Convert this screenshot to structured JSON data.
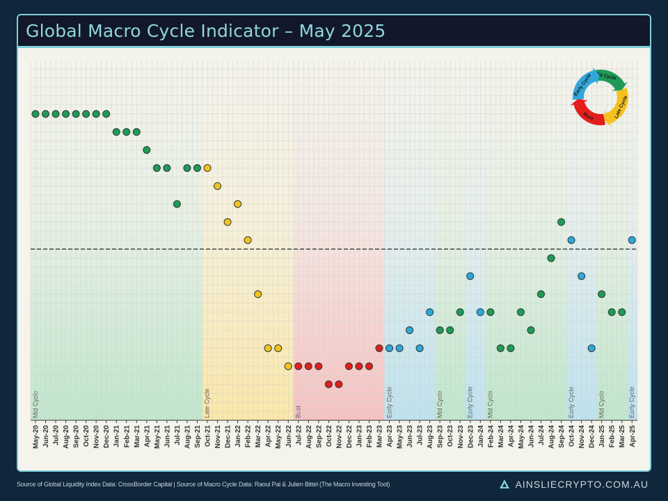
{
  "header": {
    "title": "Global Macro Cycle Indicator – May 2025"
  },
  "footer": {
    "source": "Source of Global Liquidity Index Data: CrossBorder Capital | Source of Macro Cycle Data: Raoul Pal & Julien Bittel (The Macro Investing Tool)",
    "brand": "AINSLIECRYPTO.COM.AU",
    "brand_icon": "ainslie-a-logo-icon"
  },
  "legend_wheel": {
    "labels": [
      "Mid Cycle",
      "Late Cycle",
      "Bust",
      "Early Cycle"
    ]
  },
  "colors": {
    "mid": "#1f9a57",
    "late": "#f4c21f",
    "bust": "#e41d1d",
    "early": "#2fa7dd",
    "mid_band": "#bfe6cc",
    "late_band": "#fbe7a8",
    "bust_band": "#f6c2c2",
    "early_band": "#bde2ef"
  },
  "chart_data": {
    "type": "scatter",
    "title": "Global Macro Cycle Indicator – May 2025",
    "categories": [
      "May-20",
      "Jun-20",
      "Jul-20",
      "Aug-20",
      "Sep-20",
      "Oct-20",
      "Nov-20",
      "Dec-20",
      "Jan-21",
      "Feb-21",
      "Mar-21",
      "Apr-21",
      "May-21",
      "Jun-21",
      "Jul-21",
      "Aug-21",
      "Sep-21",
      "Oct-21",
      "Nov-21",
      "Dec-21",
      "Jan-22",
      "Feb-22",
      "Mar-22",
      "Apr-22",
      "May-22",
      "Jun-22",
      "Jul-22",
      "Aug-22",
      "Sep-22",
      "Oct-22",
      "Nov-22",
      "Dec-22",
      "Jan-23",
      "Feb-23",
      "Mar-23",
      "Apr-23",
      "May-23",
      "Jun-23",
      "Jul-23",
      "Aug-23",
      "Sep-23",
      "Oct-23",
      "Nov-23",
      "Dec-23",
      "Jan-24",
      "Feb-24",
      "Mar-24",
      "Apr-24",
      "May-24",
      "Jun-24",
      "Jul-24",
      "Aug-24",
      "Sep-24",
      "Oct-24",
      "Nov-24",
      "Dec-24",
      "Jan-25",
      "Feb-25",
      "Mar-25",
      "Apr-25"
    ],
    "values": [
      16,
      16,
      16,
      16,
      16,
      16,
      16,
      16,
      15,
      15,
      15,
      14,
      13,
      13,
      11,
      13,
      13,
      13,
      12,
      10,
      11,
      9,
      6,
      3,
      3,
      2,
      2,
      2,
      2,
      1,
      1,
      2,
      2,
      2,
      3,
      3,
      3,
      4,
      3,
      5,
      4,
      4,
      5,
      7,
      5,
      5,
      3,
      3,
      5,
      4,
      6,
      8,
      10,
      9,
      7,
      3,
      6,
      5,
      5,
      9
    ],
    "phase": [
      "mid",
      "mid",
      "mid",
      "mid",
      "mid",
      "mid",
      "mid",
      "mid",
      "mid",
      "mid",
      "mid",
      "mid",
      "mid",
      "mid",
      "mid",
      "mid",
      "mid",
      "late",
      "late",
      "late",
      "late",
      "late",
      "late",
      "late",
      "late",
      "late",
      "bust",
      "bust",
      "bust",
      "bust",
      "bust",
      "bust",
      "bust",
      "bust",
      "bust",
      "early",
      "early",
      "early",
      "early",
      "early",
      "mid",
      "mid",
      "mid",
      "early",
      "early",
      "mid",
      "mid",
      "mid",
      "mid",
      "mid",
      "mid",
      "mid",
      "mid",
      "early",
      "early",
      "early",
      "mid",
      "mid",
      "mid",
      "early"
    ],
    "threshold": 8.5,
    "ylim": [
      0.5,
      17.5
    ],
    "grid": true,
    "bands": [
      {
        "label": "Mid Cycle",
        "phase": "mid",
        "start": "May-20",
        "end": "Sep-21"
      },
      {
        "label": "Late Cycle",
        "phase": "late",
        "start": "Oct-21",
        "end": "Jun-22"
      },
      {
        "label": "Bust",
        "phase": "bust",
        "start": "Jul-22",
        "end": "Mar-23"
      },
      {
        "label": "Early Cycle",
        "phase": "early",
        "start": "Apr-23",
        "end": "Aug-23"
      },
      {
        "label": "Mid Cycle",
        "phase": "mid",
        "start": "Sep-23",
        "end": "Nov-23"
      },
      {
        "label": "Early Cycle",
        "phase": "early",
        "start": "Dec-23",
        "end": "Jan-24"
      },
      {
        "label": "Mid Cycle",
        "phase": "mid",
        "start": "Feb-24",
        "end": "Sep-24"
      },
      {
        "label": "Early Cycle",
        "phase": "early",
        "start": "Oct-24",
        "end": "Dec-24"
      },
      {
        "label": "Mid Cycle",
        "phase": "mid",
        "start": "Jan-25",
        "end": "Mar-25"
      },
      {
        "label": "Early Cycle",
        "phase": "early",
        "start": "Apr-25",
        "end": "Apr-25"
      }
    ],
    "legend": "top-right"
  }
}
